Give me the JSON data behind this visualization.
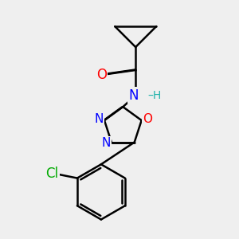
{
  "bg_color": "#efefef",
  "bond_color": "#000000",
  "bond_width": 1.8,
  "atom_colors": {
    "O": "#ff0000",
    "N": "#0000ff",
    "Cl": "#00aa00",
    "H": "#20b2aa",
    "C": "#000000"
  },
  "font_size_atom": 12,
  "font_size_h": 10
}
